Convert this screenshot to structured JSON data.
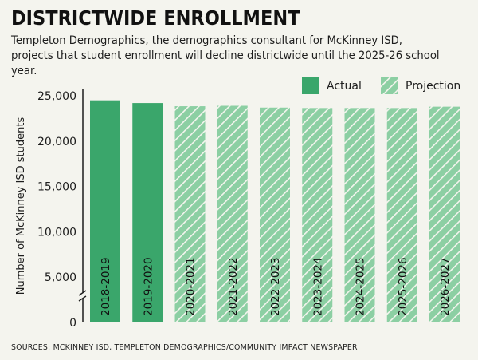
{
  "chart_data": {
    "type": "bar",
    "title": "DISTRICTWIDE ENROLLMENT",
    "subtitle": "Templeton Demographics, the demographics consultant for McKinney ISD, projects that student enrollment will decline districtwide until the 2025-26 school year.",
    "ylabel": "Number of McKinney ISD students",
    "xlabel": "",
    "ylim": [
      0,
      25000
    ],
    "y_break": true,
    "yticks": [
      0,
      5000,
      10000,
      15000,
      20000,
      25000
    ],
    "ytick_labels": [
      "0",
      "5,000",
      "10,000",
      "15,000",
      "20,000",
      "25,000"
    ],
    "categories": [
      "2018-2019",
      "2019-2020",
      "2020-2021",
      "2021-2022",
      "2022-2023",
      "2023-2024",
      "2024-2025",
      "2025-2026",
      "2026-2027"
    ],
    "values": [
      24500,
      24200,
      23850,
      23900,
      23700,
      23650,
      23650,
      23650,
      23800
    ],
    "bar_kind": [
      "actual",
      "actual",
      "projection",
      "projection",
      "projection",
      "projection",
      "projection",
      "projection",
      "projection"
    ],
    "legend": [
      {
        "key": "actual",
        "label": "Actual"
      },
      {
        "key": "projection",
        "label": "Projection"
      }
    ],
    "legend_position": "top-right",
    "grid": false,
    "colors": {
      "actual": "#3aa66b",
      "projection": "#8ccfa3",
      "hatch": "#f4f4ee"
    }
  },
  "source": "SOURCES: MCKINNEY ISD, TEMPLETON DEMOGRAPHICS/COMMUNITY IMPACT NEWSPAPER"
}
